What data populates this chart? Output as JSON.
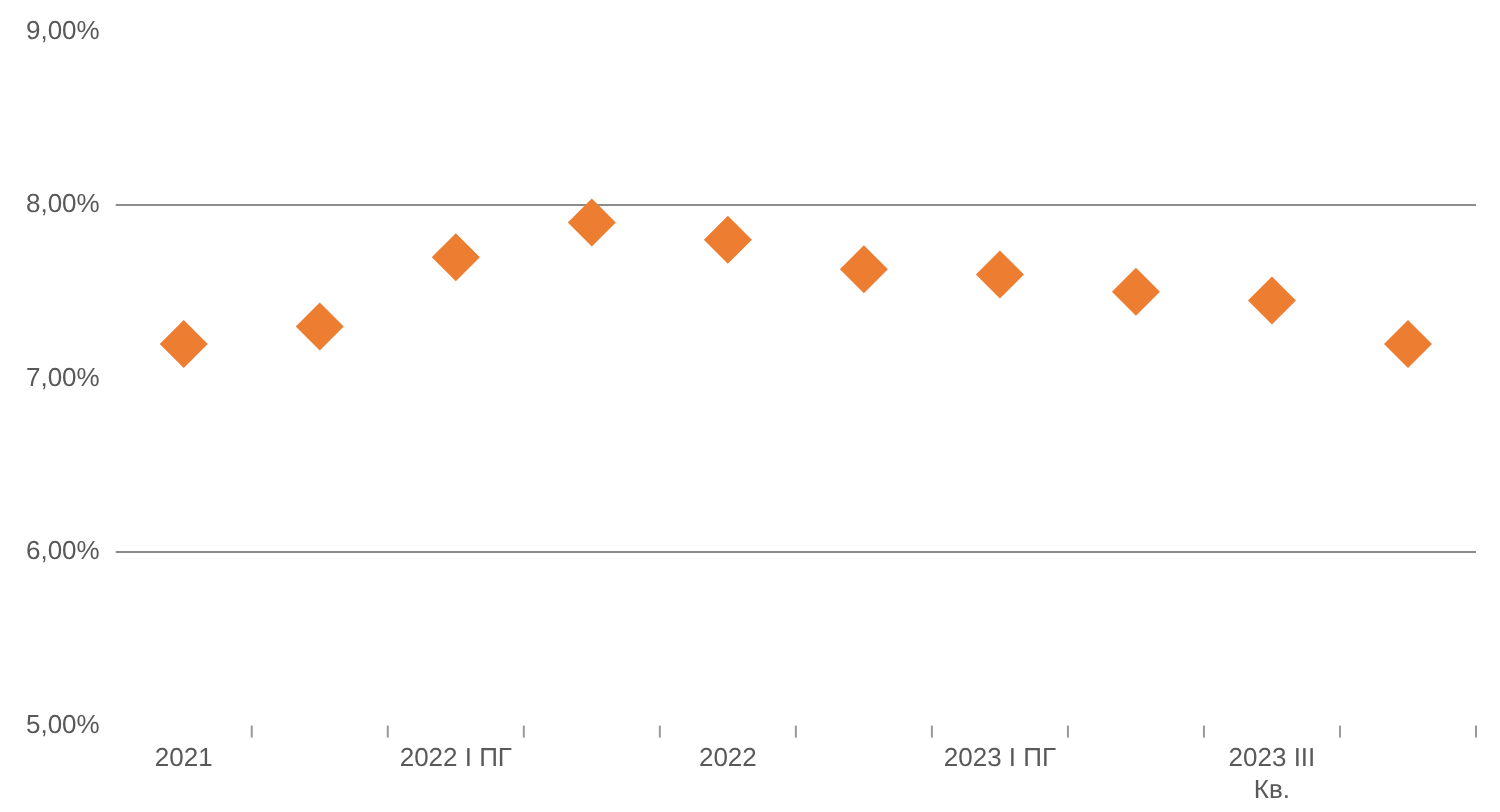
{
  "chart_data": {
    "type": "scatter",
    "categories": [
      "2021",
      null,
      "2022 I ПГ",
      null,
      "2022",
      null,
      "2023 I ПГ",
      null,
      "2023 III Кв.",
      null
    ],
    "series": [
      {
        "color": "#ed7d31",
        "values": [
          7.2,
          7.3,
          7.7,
          7.9,
          7.8,
          7.63,
          7.6,
          7.5,
          7.45,
          7.2
        ]
      }
    ],
    "ylim": [
      5,
      9
    ],
    "yticks": [
      {
        "value": 5,
        "label": "5,00%"
      },
      {
        "value": 6,
        "label": "6,00%"
      },
      {
        "value": 7,
        "label": "7,00%"
      },
      {
        "value": 8,
        "label": "8,00%"
      },
      {
        "value": 9,
        "label": "9,00%"
      }
    ],
    "ref_lines": [
      {
        "axis": "y",
        "value": 6,
        "color": "#8c8c8c"
      },
      {
        "axis": "y",
        "value": 8,
        "color": "#8c8c8c"
      }
    ],
    "grid": false,
    "legend": false,
    "marker": "diamond"
  }
}
